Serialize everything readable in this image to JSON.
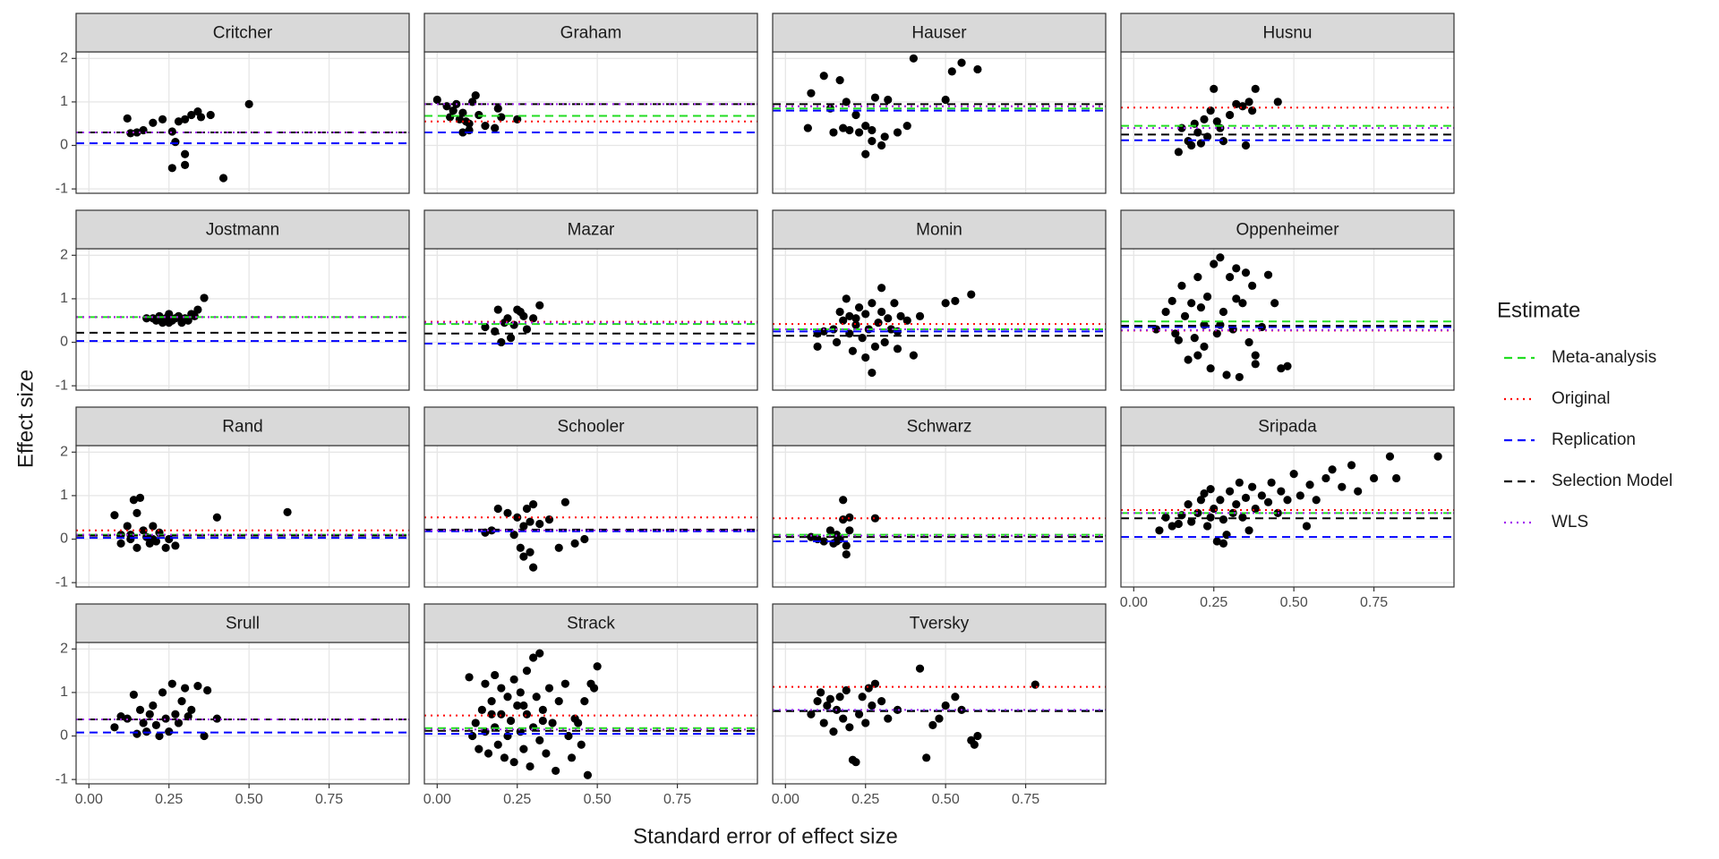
{
  "chart_data": {
    "type": "scatter",
    "x_label": "Standard error of effect size",
    "y_label": "Effect size",
    "legend_title": "Estimate",
    "legend": "right",
    "grid": true,
    "xlim": [
      -0.04,
      1.0
    ],
    "ylim": [
      -1.1,
      2.15
    ],
    "xticks": [
      {
        "value": 0,
        "label": "0.00"
      },
      {
        "value": 0.25,
        "label": "0.25"
      },
      {
        "value": 0.5,
        "label": "0.50"
      },
      {
        "value": 0.75,
        "label": "0.75"
      }
    ],
    "yticks": [
      -1,
      0,
      1,
      2
    ],
    "point_color": "#000000",
    "estimates": [
      {
        "name": "Meta-analysis",
        "color": "#22dd22",
        "dash": "dashed"
      },
      {
        "name": "Original",
        "color": "#ff0000",
        "dash": "dotted"
      },
      {
        "name": "Replication",
        "color": "#0000ff",
        "dash": "dashed"
      },
      {
        "name": "Selection Model",
        "color": "#000000",
        "dash": "dashed"
      },
      {
        "name": "WLS",
        "color": "#a020f0",
        "dash": "dotted"
      }
    ],
    "panels": [
      {
        "title": "Critcher",
        "estimates": [
          0.3,
          0.3,
          0.05,
          0.3,
          0.3
        ],
        "x": [
          0.12,
          0.13,
          0.15,
          0.17,
          0.2,
          0.26,
          0.26,
          0.27,
          0.28,
          0.3,
          0.3,
          0.3,
          0.32,
          0.34,
          0.35,
          0.38,
          0.5,
          0.42,
          0.23
        ],
        "values": [
          0.62,
          0.28,
          0.3,
          0.35,
          0.52,
          0.32,
          -0.52,
          0.08,
          0.55,
          0.6,
          -0.2,
          -0.45,
          0.7,
          0.78,
          0.65,
          0.7,
          0.95,
          -0.75,
          0.6
        ]
      },
      {
        "title": "Graham",
        "estimates": [
          0.68,
          0.55,
          0.3,
          0.95,
          0.95
        ],
        "x": [
          0,
          0.03,
          0.05,
          0.06,
          0.07,
          0.08,
          0.09,
          0.1,
          0.1,
          0.11,
          0.12,
          0.13,
          0.15,
          0.18,
          0.19,
          0.2,
          0.25,
          0.04,
          0.08
        ],
        "values": [
          1.05,
          0.9,
          0.8,
          0.95,
          0.6,
          0.75,
          0.55,
          0.5,
          0.35,
          1.0,
          1.15,
          0.7,
          0.45,
          0.4,
          0.85,
          0.65,
          0.6,
          0.65,
          0.3
        ]
      },
      {
        "title": "Hauser",
        "estimates": [
          0.85,
          0.9,
          0.8,
          0.95,
          0.9
        ],
        "x": [
          0.07,
          0.08,
          0.12,
          0.14,
          0.15,
          0.17,
          0.19,
          0.2,
          0.22,
          0.23,
          0.25,
          0.25,
          0.27,
          0.28,
          0.3,
          0.31,
          0.32,
          0.35,
          0.38,
          0.4,
          0.5,
          0.52,
          0.55,
          0.6,
          0.18,
          0.27
        ],
        "values": [
          0.4,
          1.2,
          1.6,
          0.85,
          0.3,
          1.5,
          1.0,
          0.35,
          0.7,
          0.3,
          -0.2,
          0.45,
          0.1,
          1.1,
          0,
          0.2,
          1.05,
          0.3,
          0.45,
          2.0,
          1.05,
          1.7,
          1.9,
          1.75,
          0.4,
          0.35
        ]
      },
      {
        "title": "Husnu",
        "estimates": [
          0.45,
          0.87,
          0.12,
          0.25,
          0.4
        ],
        "x": [
          0.14,
          0.15,
          0.17,
          0.18,
          0.19,
          0.2,
          0.21,
          0.22,
          0.23,
          0.24,
          0.25,
          0.26,
          0.27,
          0.28,
          0.3,
          0.32,
          0.34,
          0.35,
          0.36,
          0.38,
          0.37,
          0.45
        ],
        "values": [
          -0.15,
          0.4,
          0.1,
          0,
          0.5,
          0.3,
          0.05,
          0.6,
          0.2,
          0.8,
          1.3,
          0.55,
          0.4,
          0.1,
          0.7,
          0.95,
          0.9,
          0,
          1.0,
          1.3,
          0.8,
          1.0
        ]
      },
      {
        "title": "Jostmann",
        "estimates": [
          0.58,
          0.58,
          0.03,
          0.22,
          0.58
        ],
        "x": [
          0.2,
          0.21,
          0.22,
          0.23,
          0.24,
          0.25,
          0.26,
          0.27,
          0.28,
          0.29,
          0.3,
          0.31,
          0.32,
          0.33,
          0.34,
          0.36,
          0.25,
          0.18
        ],
        "values": [
          0.55,
          0.5,
          0.6,
          0.45,
          0.55,
          0.65,
          0.5,
          0.55,
          0.6,
          0.45,
          0.55,
          0.5,
          0.65,
          0.6,
          0.75,
          1.02,
          0.45,
          0.55
        ]
      },
      {
        "title": "Mazar",
        "estimates": [
          0.42,
          0.47,
          -0.03,
          0.2,
          0.45
        ],
        "x": [
          0.15,
          0.18,
          0.19,
          0.2,
          0.21,
          0.22,
          0.23,
          0.25,
          0.26,
          0.27,
          0.28,
          0.3,
          0.32,
          0.24
        ],
        "values": [
          0.35,
          0.25,
          0.75,
          0,
          0.45,
          0.55,
          0.1,
          0.75,
          0.7,
          0.6,
          0.3,
          0.55,
          0.85,
          0.4
        ]
      },
      {
        "title": "Monin",
        "estimates": [
          0.3,
          0.42,
          0.25,
          0.15,
          0.3
        ],
        "x": [
          0.1,
          0.1,
          0.12,
          0.15,
          0.16,
          0.17,
          0.18,
          0.19,
          0.2,
          0.2,
          0.21,
          0.22,
          0.23,
          0.24,
          0.25,
          0.25,
          0.26,
          0.27,
          0.28,
          0.29,
          0.3,
          0.3,
          0.31,
          0.32,
          0.33,
          0.34,
          0.35,
          0.36,
          0.38,
          0.4,
          0.42,
          0.5,
          0.53,
          0.58,
          0.27,
          0.22,
          0.35
        ],
        "values": [
          -0.1,
          0.2,
          0.25,
          0.3,
          0,
          0.7,
          0.5,
          1.0,
          0.2,
          0.6,
          -0.2,
          0.4,
          0.8,
          0.1,
          -0.35,
          0.65,
          0.3,
          0.9,
          -0.1,
          0.45,
          1.25,
          0.7,
          0,
          0.55,
          0.3,
          0.9,
          -0.15,
          0.6,
          0.5,
          -0.3,
          0.6,
          0.9,
          0.95,
          1.1,
          -0.7,
          0.55,
          0.25
        ]
      },
      {
        "title": "Oppenheimer",
        "estimates": [
          0.48,
          0.27,
          0.35,
          0.38,
          0.28
        ],
        "x": [
          0.07,
          0.1,
          0.12,
          0.13,
          0.14,
          0.15,
          0.16,
          0.17,
          0.18,
          0.19,
          0.2,
          0.2,
          0.21,
          0.22,
          0.23,
          0.24,
          0.25,
          0.26,
          0.27,
          0.28,
          0.29,
          0.3,
          0.31,
          0.32,
          0.33,
          0.34,
          0.35,
          0.36,
          0.37,
          0.38,
          0.4,
          0.42,
          0.44,
          0.38,
          0.46,
          0.48,
          0.27,
          0.22,
          0.32
        ],
        "values": [
          0.3,
          0.7,
          0.95,
          0.2,
          0.05,
          1.3,
          0.6,
          -0.4,
          0.9,
          0.1,
          -0.3,
          1.5,
          0.8,
          0.4,
          1.05,
          -0.6,
          1.8,
          0.2,
          1.95,
          0.7,
          -0.75,
          1.5,
          0.3,
          1.7,
          -0.8,
          0.9,
          1.6,
          0,
          1.3,
          -0.3,
          0.35,
          1.55,
          0.9,
          -0.5,
          -0.6,
          -0.55,
          0.4,
          -0.1,
          1.0
        ]
      },
      {
        "title": "Rand",
        "estimates": [
          0.1,
          0.2,
          0.03,
          0.08,
          0.1
        ],
        "x": [
          0.08,
          0.1,
          0.1,
          0.12,
          0.13,
          0.14,
          0.15,
          0.16,
          0.17,
          0.18,
          0.19,
          0.2,
          0.21,
          0.22,
          0.24,
          0.25,
          0.27,
          0.15,
          0.4,
          0.62,
          0.13,
          0.2
        ],
        "values": [
          0.55,
          0.1,
          -0.1,
          0.3,
          0,
          0.9,
          -0.2,
          0.95,
          0.2,
          0.05,
          -0.1,
          0.3,
          -0.05,
          0.15,
          -0.2,
          0,
          -0.15,
          0.6,
          0.5,
          0.62,
          0.1,
          0
        ]
      },
      {
        "title": "Schooler",
        "estimates": [
          0.2,
          0.5,
          0.18,
          0.22,
          0.2
        ],
        "x": [
          0.15,
          0.17,
          0.19,
          0.22,
          0.24,
          0.25,
          0.26,
          0.27,
          0.27,
          0.28,
          0.29,
          0.3,
          0.3,
          0.32,
          0.35,
          0.38,
          0.4,
          0.43,
          0.46,
          0.29
        ],
        "values": [
          0.15,
          0.2,
          0.7,
          0.6,
          0.1,
          0.5,
          -0.2,
          0.3,
          -0.4,
          0.7,
          -0.3,
          0.8,
          -0.65,
          0.35,
          0.45,
          -0.2,
          0.85,
          -0.1,
          0,
          0.4
        ]
      },
      {
        "title": "Schwarz",
        "estimates": [
          0.1,
          0.48,
          -0.05,
          0.05,
          0.08
        ],
        "x": [
          0.08,
          0.1,
          0.12,
          0.14,
          0.15,
          0.16,
          0.17,
          0.18,
          0.18,
          0.19,
          0.19,
          0.2,
          0.2,
          0.28,
          0.16
        ],
        "values": [
          0.05,
          0,
          -0.05,
          0.2,
          -0.1,
          0.1,
          0,
          0.9,
          0.45,
          -0.35,
          -0.15,
          0.5,
          0.2,
          0.48,
          -0.05
        ]
      },
      {
        "title": "Sripada",
        "estimates": [
          0.6,
          0.67,
          0.05,
          0.48,
          0.6
        ],
        "x": [
          0.08,
          0.1,
          0.12,
          0.14,
          0.15,
          0.17,
          0.18,
          0.2,
          0.21,
          0.22,
          0.23,
          0.24,
          0.25,
          0.26,
          0.27,
          0.28,
          0.29,
          0.3,
          0.31,
          0.32,
          0.33,
          0.34,
          0.35,
          0.36,
          0.37,
          0.38,
          0.4,
          0.42,
          0.43,
          0.45,
          0.46,
          0.48,
          0.5,
          0.52,
          0.54,
          0.55,
          0.57,
          0.6,
          0.62,
          0.65,
          0.68,
          0.7,
          0.75,
          0.8,
          0.82,
          0.95,
          0.28,
          0.24
        ],
        "values": [
          0.2,
          0.5,
          0.3,
          0.35,
          0.55,
          0.8,
          0.4,
          0.6,
          0.9,
          1.05,
          0.3,
          0.5,
          0.7,
          -0.05,
          0.9,
          0.45,
          0.1,
          1.1,
          0.6,
          0.8,
          1.3,
          0.5,
          0.95,
          0.2,
          1.2,
          0.7,
          1.0,
          0.85,
          1.3,
          0.6,
          1.1,
          0.9,
          1.5,
          1.0,
          0.3,
          1.25,
          0.9,
          1.4,
          1.6,
          1.2,
          1.7,
          1.1,
          1.4,
          1.9,
          1.4,
          1.9,
          -0.1,
          1.15
        ]
      },
      {
        "title": "Srull",
        "estimates": [
          0.38,
          0.38,
          0.08,
          0.38,
          0.38
        ],
        "x": [
          0.08,
          0.1,
          0.12,
          0.14,
          0.15,
          0.16,
          0.17,
          0.18,
          0.19,
          0.2,
          0.21,
          0.22,
          0.23,
          0.24,
          0.25,
          0.26,
          0.27,
          0.28,
          0.29,
          0.3,
          0.31,
          0.32,
          0.34,
          0.36,
          0.37,
          0.4
        ],
        "values": [
          0.2,
          0.45,
          0.4,
          0.95,
          0.05,
          0.6,
          0.3,
          0.1,
          0.5,
          0.7,
          0.25,
          0,
          1.0,
          0.4,
          0.1,
          1.2,
          0.5,
          0.3,
          0.8,
          1.1,
          0.45,
          0.6,
          1.15,
          0,
          1.05,
          0.4
        ]
      },
      {
        "title": "Strack",
        "estimates": [
          0.18,
          0.47,
          0.05,
          0.12,
          0.15
        ],
        "x": [
          0.1,
          0.11,
          0.12,
          0.13,
          0.14,
          0.15,
          0.15,
          0.16,
          0.17,
          0.18,
          0.18,
          0.19,
          0.2,
          0.2,
          0.21,
          0.22,
          0.22,
          0.23,
          0.24,
          0.24,
          0.25,
          0.26,
          0.26,
          0.27,
          0.28,
          0.28,
          0.29,
          0.3,
          0.3,
          0.31,
          0.32,
          0.32,
          0.33,
          0.34,
          0.35,
          0.36,
          0.37,
          0.38,
          0.4,
          0.41,
          0.42,
          0.43,
          0.44,
          0.45,
          0.46,
          0.48,
          0.49,
          0.5,
          0.47,
          0.33,
          0.17,
          0.27
        ],
        "values": [
          1.35,
          0,
          0.3,
          -0.3,
          0.6,
          0.1,
          1.2,
          -0.4,
          0.8,
          0.2,
          1.4,
          -0.2,
          0.5,
          1.1,
          -0.5,
          0.9,
          0,
          0.35,
          1.3,
          -0.6,
          0.7,
          0.1,
          1.0,
          -0.3,
          0.5,
          1.5,
          -0.7,
          0.2,
          1.8,
          0.9,
          -0.1,
          1.9,
          0.6,
          -0.4,
          1.1,
          0.3,
          -0.8,
          0.8,
          1.2,
          0,
          -0.5,
          0.4,
          0.3,
          -0.2,
          0.8,
          1.2,
          1.1,
          1.6,
          -0.9,
          0.35,
          0.5,
          0.7
        ]
      },
      {
        "title": "Tversky",
        "estimates": [
          0.58,
          1.13,
          0.58,
          0.57,
          0.6
        ],
        "x": [
          0.08,
          0.1,
          0.11,
          0.12,
          0.13,
          0.14,
          0.15,
          0.16,
          0.17,
          0.18,
          0.19,
          0.2,
          0.21,
          0.22,
          0.23,
          0.24,
          0.25,
          0.26,
          0.27,
          0.28,
          0.3,
          0.32,
          0.35,
          0.42,
          0.44,
          0.46,
          0.48,
          0.5,
          0.53,
          0.55,
          0.58,
          0.59,
          0.6,
          0.78
        ],
        "values": [
          0.5,
          0.8,
          1.0,
          0.3,
          0.7,
          0.85,
          0.1,
          0.6,
          0.9,
          0.4,
          1.05,
          0.2,
          -0.55,
          -0.6,
          0.5,
          0.9,
          0.3,
          1.1,
          0.7,
          1.2,
          0.8,
          0.4,
          0.6,
          1.55,
          -0.5,
          0.25,
          0.4,
          0.7,
          0.9,
          0.6,
          -0.1,
          -0.2,
          0,
          1.18
        ]
      }
    ]
  }
}
